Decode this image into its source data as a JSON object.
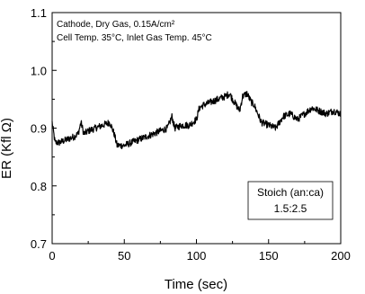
{
  "chart_data": {
    "type": "line",
    "title": "",
    "xlabel": "Time (sec)",
    "ylabel": "ER (Kfl Ω)",
    "xlim": [
      0,
      200
    ],
    "ylim": [
      0.7,
      1.1
    ],
    "x_ticks": [
      "0",
      "50",
      "100",
      "150",
      "200"
    ],
    "y_ticks": [
      "0.7",
      "0.8",
      "0.9",
      "1.0",
      "1.1"
    ],
    "grid": false,
    "annotation": {
      "line1": "Cathode, Dry Gas, 0.15A/cm²",
      "line2": "Cell Temp. 35°C, Inlet Gas Temp. 45°C"
    },
    "legend_box": {
      "title": "Stoich (an:ca)",
      "value": "1.5:2.5",
      "placement": "bottom-right"
    },
    "series": [
      {
        "x": [
          0,
          2,
          5,
          10,
          15,
          18,
          20,
          22,
          25,
          30,
          35,
          40,
          43,
          45,
          50,
          55,
          60,
          65,
          70,
          75,
          80,
          83,
          85,
          90,
          95,
          100,
          102,
          105,
          110,
          115,
          120,
          123,
          125,
          130,
          132,
          135,
          138,
          140,
          145,
          150,
          155,
          160,
          165,
          170,
          175,
          180,
          185,
          190,
          195,
          200
        ],
        "y": [
          0.91,
          0.875,
          0.875,
          0.88,
          0.885,
          0.89,
          0.91,
          0.89,
          0.895,
          0.9,
          0.905,
          0.91,
          0.89,
          0.87,
          0.87,
          0.875,
          0.88,
          0.885,
          0.89,
          0.895,
          0.9,
          0.92,
          0.9,
          0.905,
          0.905,
          0.915,
          0.935,
          0.94,
          0.945,
          0.95,
          0.955,
          0.96,
          0.95,
          0.93,
          0.955,
          0.96,
          0.945,
          0.94,
          0.91,
          0.905,
          0.9,
          0.92,
          0.925,
          0.915,
          0.925,
          0.935,
          0.93,
          0.925,
          0.93,
          0.925
        ]
      }
    ]
  }
}
